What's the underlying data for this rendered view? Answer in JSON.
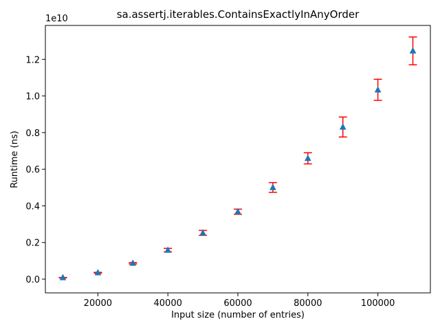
{
  "chart_data": {
    "type": "scatter",
    "title": "sa.assertj.iterables.ContainsExactlyInAnyOrder",
    "xlabel": "Input size (number of entries)",
    "ylabel": "Runtime (ns)",
    "y_offset_label": "1e10",
    "xlim": [
      5000,
      115000
    ],
    "ylim": [
      -0.075,
      1.385
    ],
    "y_scale_note": "values in units of 1e10 ns",
    "x_ticks": [
      20000,
      40000,
      60000,
      80000,
      100000
    ],
    "x_tick_labels": [
      "20000",
      "40000",
      "60000",
      "80000",
      "100000"
    ],
    "y_ticks": [
      0.0,
      0.2,
      0.4,
      0.6,
      0.8,
      1.0,
      1.2
    ],
    "y_tick_labels": [
      "0.0",
      "0.2",
      "0.4",
      "0.6",
      "0.8",
      "1.0",
      "1.2"
    ],
    "grid": false,
    "marker": "triangle-up",
    "colors": {
      "marker": "#1f77b4",
      "errorbar": "#ff0000",
      "axes": "#000000"
    },
    "series": [
      {
        "x": [
          10000,
          20000,
          30000,
          40000,
          50000,
          60000,
          70000,
          80000,
          90000,
          100000,
          110000
        ],
        "y": [
          0.008,
          0.035,
          0.087,
          0.158,
          0.252,
          0.368,
          0.5,
          0.659,
          0.83,
          1.033,
          1.246
        ],
        "yerr_low": [
          0.001,
          0.002,
          0.004,
          0.009,
          0.013,
          0.014,
          0.026,
          0.03,
          0.054,
          0.057,
          0.076
        ],
        "yerr_high": [
          0.001,
          0.002,
          0.004,
          0.01,
          0.014,
          0.014,
          0.027,
          0.031,
          0.055,
          0.058,
          0.076
        ]
      }
    ]
  }
}
